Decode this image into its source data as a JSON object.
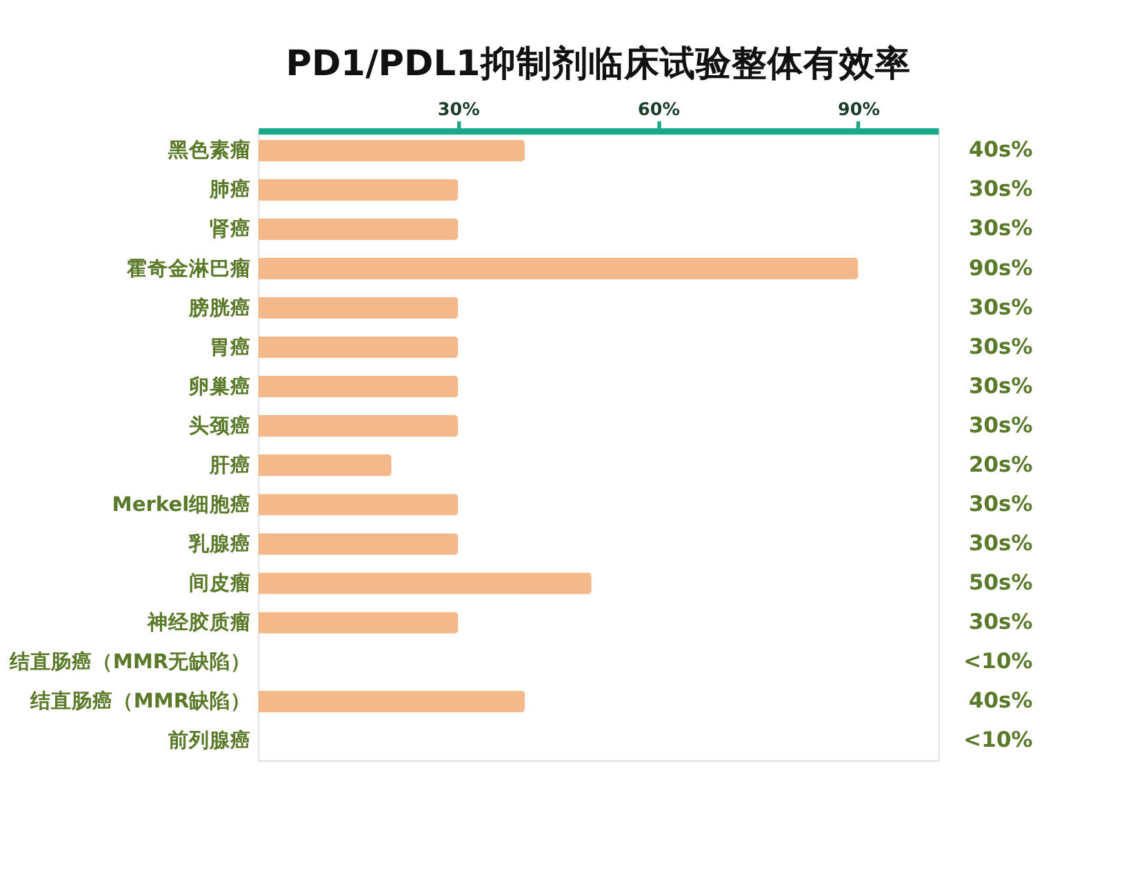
{
  "chart_data": {
    "type": "bar",
    "orientation": "horizontal",
    "title": "PD1/PDL1抑制剂临床试验整体有效率",
    "categories": [
      "黑色素瘤",
      "肺癌",
      "肾癌",
      "霍奇金淋巴瘤",
      "膀胱癌",
      "胃癌",
      "卵巢癌",
      "头颈癌",
      "肝癌",
      "Merkel细胞癌",
      "乳腺癌",
      "间皮瘤",
      "神经胶质瘤",
      "结直肠癌（MMR无缺陷）",
      "结直肠癌（MMR缺陷）",
      "前列腺癌"
    ],
    "values": [
      40,
      30,
      30,
      90,
      30,
      30,
      30,
      30,
      20,
      30,
      30,
      50,
      30,
      null,
      40,
      null
    ],
    "value_labels": [
      "40s%",
      "30s%",
      "30s%",
      "90s%",
      "30s%",
      "30s%",
      "30s%",
      "30s%",
      "20s%",
      "30s%",
      "30s%",
      "50s%",
      "30s%",
      "<10%",
      "40s%",
      "<10%"
    ],
    "color": "#f4b98a",
    "xlim": [
      0,
      102
    ],
    "xticks": [
      {
        "value": 30,
        "label": "30%"
      },
      {
        "value": 60,
        "label": "60%"
      },
      {
        "value": 90,
        "label": "90%"
      }
    ],
    "grid": false
  }
}
